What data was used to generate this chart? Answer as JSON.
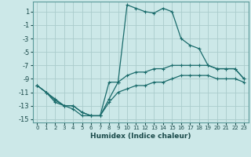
{
  "xlabel": "Humidex (Indice chaleur)",
  "xlim": [
    -0.5,
    23.5
  ],
  "ylim": [
    -15.5,
    2.5
  ],
  "yticks": [
    1,
    -1,
    -3,
    -5,
    -7,
    -9,
    -11,
    -13,
    -15
  ],
  "xticks": [
    0,
    1,
    2,
    3,
    4,
    5,
    6,
    7,
    8,
    9,
    10,
    11,
    12,
    13,
    14,
    15,
    16,
    17,
    18,
    19,
    20,
    21,
    22,
    23
  ],
  "bg_color": "#cce8e8",
  "grid_color": "#aacccc",
  "line_color": "#1a6b6b",
  "series": [
    {
      "x": [
        0,
        1,
        2,
        3,
        4,
        5,
        6,
        7,
        8,
        9,
        10,
        11,
        12,
        13,
        14,
        15,
        16,
        17,
        18,
        19,
        20,
        21,
        22,
        23
      ],
      "y": [
        -10,
        -11,
        -12,
        -13,
        -13,
        -14,
        -14.5,
        -14.5,
        -9.5,
        -9.5,
        2,
        1.5,
        1,
        0.8,
        1.5,
        1.0,
        -3,
        -4,
        -4.5,
        -7,
        -7.5,
        -7.5,
        -7.5,
        -9
      ]
    },
    {
      "x": [
        0,
        1,
        2,
        3,
        4,
        5,
        6,
        7,
        8,
        9,
        10,
        11,
        12,
        13,
        14,
        15,
        16,
        17,
        18,
        19,
        20,
        21,
        22,
        23
      ],
      "y": [
        -10,
        -11,
        -12.2,
        -13,
        -13,
        -14,
        -14.5,
        -14.5,
        -12,
        -9.5,
        -8.5,
        -8,
        -8,
        -7.5,
        -7.5,
        -7,
        -7,
        -7,
        -7,
        -7,
        -7.5,
        -7.5,
        -7.5,
        -9
      ]
    },
    {
      "x": [
        0,
        1,
        2,
        3,
        4,
        5,
        6,
        7,
        8,
        9,
        10,
        11,
        12,
        13,
        14,
        15,
        16,
        17,
        18,
        19,
        20,
        21,
        22,
        23
      ],
      "y": [
        -10,
        -11,
        -12.5,
        -13,
        -13.5,
        -14.5,
        -14.5,
        -14.5,
        -12.5,
        -11,
        -10.5,
        -10,
        -10,
        -9.5,
        -9.5,
        -9,
        -8.5,
        -8.5,
        -8.5,
        -8.5,
        -9,
        -9,
        -9,
        -9.5
      ]
    }
  ]
}
